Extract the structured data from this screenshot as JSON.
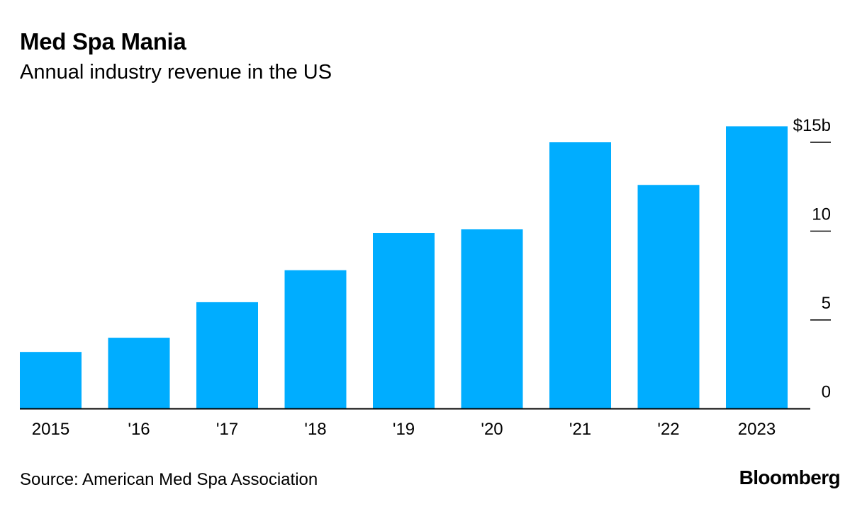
{
  "colors": {
    "bar": "#00adff",
    "axis": "#000000",
    "background": "#ffffff"
  },
  "header": {
    "title": "Med Spa Mania",
    "subtitle": "Annual industry revenue in the US"
  },
  "footer": {
    "source": "Source: American Med Spa Association",
    "brand": "Bloomberg"
  },
  "chart_data": {
    "type": "bar",
    "title": "Med Spa Mania",
    "subtitle": "Annual industry revenue in the US",
    "xlabel": "",
    "ylabel": "",
    "categories": [
      "2015",
      "'16",
      "'17",
      "'18",
      "'19",
      "'20",
      "'21",
      "'22",
      "2023"
    ],
    "values": [
      3.2,
      4.0,
      6.0,
      7.8,
      9.9,
      10.1,
      15.0,
      12.6,
      15.9
    ],
    "ylim": [
      0,
      15
    ],
    "yticks": [
      0,
      5,
      10,
      15
    ],
    "ytick_labels": [
      "0",
      "5",
      "10",
      "$15b"
    ],
    "y_axis_side": "right",
    "grid": false,
    "legend": "none"
  }
}
